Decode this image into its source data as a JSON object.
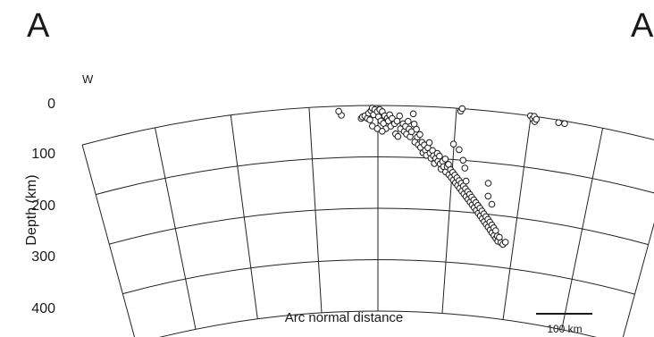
{
  "panel_labels": [
    "A",
    "A"
  ],
  "chart_data": {
    "type": "scatter",
    "title": "",
    "xlabel": "Arc normal distance",
    "ylabel": "Depth (km)",
    "direction_label": "W",
    "yticks": [
      "0",
      "100",
      "200",
      "300",
      "400"
    ],
    "ylim": [
      0,
      400
    ],
    "xlim": [
      0,
      900
    ],
    "scale_bar": {
      "label": "100 km",
      "length_km": 100
    },
    "grid": true,
    "colors": {
      "ink": "#1a1a1a",
      "grid": "#222222",
      "marker_fill": "#ffffff"
    },
    "points": [
      [
        -5,
        18
      ],
      [
        75,
        25
      ],
      [
        80,
        22
      ],
      [
        90,
        20
      ],
      [
        100,
        25
      ],
      [
        110,
        28
      ],
      [
        105,
        15
      ],
      [
        115,
        10
      ],
      [
        120,
        5
      ],
      [
        130,
        8
      ],
      [
        125,
        18
      ],
      [
        140,
        12
      ],
      [
        150,
        8
      ],
      [
        160,
        12
      ],
      [
        145,
        22
      ],
      [
        155,
        30
      ],
      [
        170,
        20
      ],
      [
        180,
        25
      ],
      [
        190,
        18
      ],
      [
        165,
        35
      ],
      [
        175,
        45
      ],
      [
        120,
        40
      ],
      [
        140,
        45
      ],
      [
        160,
        50
      ],
      [
        185,
        30
      ],
      [
        195,
        40
      ],
      [
        200,
        25
      ],
      [
        210,
        35
      ],
      [
        220,
        30
      ],
      [
        230,
        20
      ],
      [
        235,
        45
      ],
      [
        215,
        55
      ],
      [
        225,
        60
      ],
      [
        245,
        35
      ],
      [
        250,
        50
      ],
      [
        255,
        40
      ],
      [
        260,
        55
      ],
      [
        265,
        30
      ],
      [
        270,
        45
      ],
      [
        275,
        60
      ],
      [
        280,
        50
      ],
      [
        285,
        15
      ],
      [
        290,
        35
      ],
      [
        300,
        45
      ],
      [
        295,
        70
      ],
      [
        305,
        60
      ],
      [
        310,
        75
      ],
      [
        315,
        55
      ],
      [
        320,
        80
      ],
      [
        325,
        70
      ],
      [
        330,
        90
      ],
      [
        335,
        75
      ],
      [
        340,
        85
      ],
      [
        345,
        95
      ],
      [
        350,
        80
      ],
      [
        355,
        70
      ],
      [
        360,
        90
      ],
      [
        365,
        100
      ],
      [
        370,
        85
      ],
      [
        375,
        95
      ],
      [
        380,
        110
      ],
      [
        385,
        100
      ],
      [
        390,
        90
      ],
      [
        395,
        105
      ],
      [
        400,
        95
      ],
      [
        405,
        110
      ],
      [
        410,
        120
      ],
      [
        415,
        105
      ],
      [
        420,
        115
      ],
      [
        425,
        100
      ],
      [
        430,
        125
      ],
      [
        435,
        115
      ],
      [
        440,
        110
      ],
      [
        445,
        130
      ],
      [
        450,
        120
      ],
      [
        455,
        135
      ],
      [
        460,
        125
      ],
      [
        465,
        140
      ],
      [
        470,
        130
      ],
      [
        475,
        145
      ],
      [
        480,
        135
      ],
      [
        485,
        150
      ],
      [
        490,
        140
      ],
      [
        495,
        155
      ],
      [
        500,
        145
      ],
      [
        505,
        160
      ],
      [
        510,
        150
      ],
      [
        515,
        165
      ],
      [
        520,
        155
      ],
      [
        525,
        170
      ],
      [
        530,
        160
      ],
      [
        535,
        175
      ],
      [
        540,
        165
      ],
      [
        545,
        180
      ],
      [
        550,
        170
      ],
      [
        555,
        185
      ],
      [
        560,
        175
      ],
      [
        565,
        190
      ],
      [
        570,
        180
      ],
      [
        575,
        195
      ],
      [
        580,
        185
      ],
      [
        585,
        200
      ],
      [
        590,
        190
      ],
      [
        595,
        205
      ],
      [
        600,
        195
      ],
      [
        605,
        210
      ],
      [
        610,
        200
      ],
      [
        615,
        215
      ],
      [
        620,
        205
      ],
      [
        625,
        220
      ],
      [
        630,
        210
      ],
      [
        635,
        225
      ],
      [
        640,
        215
      ],
      [
        645,
        230
      ],
      [
        650,
        220
      ],
      [
        655,
        235
      ],
      [
        660,
        225
      ],
      [
        665,
        240
      ],
      [
        670,
        230
      ],
      [
        675,
        245
      ],
      [
        680,
        240
      ],
      [
        685,
        250
      ],
      [
        690,
        242
      ],
      [
        700,
        252
      ],
      [
        710,
        255
      ],
      [
        720,
        250
      ],
      [
        510,
        115
      ],
      [
        520,
        140
      ],
      [
        480,
        80
      ],
      [
        500,
        100
      ],
      [
        455,
        70
      ],
      [
        620,
        165
      ],
      [
        640,
        180
      ],
      [
        615,
        140
      ],
      [
        475,
        5
      ],
      [
        480,
        0
      ],
      [
        755,
        0
      ],
      [
        765,
        5
      ],
      [
        770,
        0
      ],
      [
        775,
        10
      ],
      [
        780,
        5
      ],
      [
        870,
        5
      ],
      [
        895,
        5
      ],
      [
        -15,
        10
      ]
    ]
  }
}
